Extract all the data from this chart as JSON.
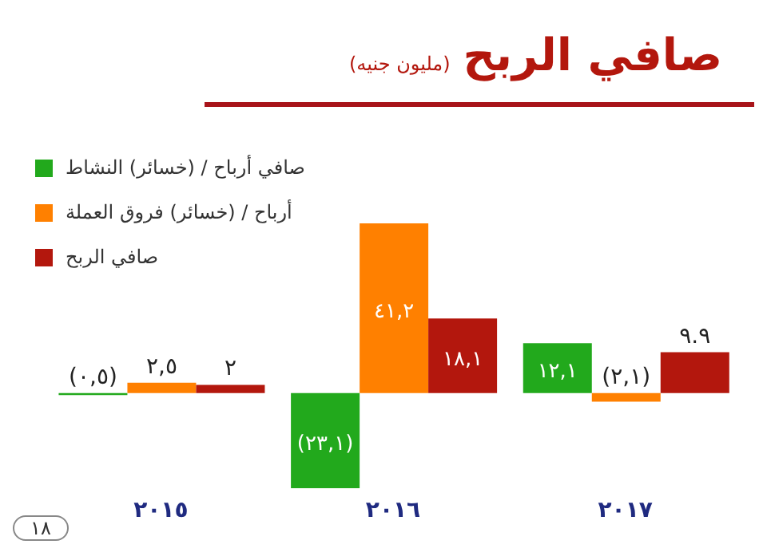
{
  "chart_data": {
    "type": "bar",
    "title": "صافي الربح",
    "subtitle": "(مليون جنيه)",
    "categories": [
      "٢٠١٥",
      "٢٠١٦",
      "٢٠١٧"
    ],
    "series": [
      {
        "name": "صافي أرباح / (خسائر) النشاط",
        "color": "#22a91c",
        "values": [
          -0.5,
          -23.1,
          12.1
        ],
        "value_labels": [
          "(٠,٥)",
          "(٢٣,١)",
          "١٢,١"
        ]
      },
      {
        "name": "أرباح / (خسائر) فروق العملة",
        "color": "#ff8000",
        "values": [
          2.5,
          41.2,
          -2.1
        ],
        "value_labels": [
          "٢,٥",
          "٤١,٢",
          "(٢,١)"
        ]
      },
      {
        "name": "صافي الربح",
        "color": "#b3170d",
        "values": [
          2,
          18.1,
          9.9
        ],
        "value_labels": [
          "٢",
          "١٨,١",
          "٩.٩"
        ]
      }
    ],
    "legend": "top left",
    "grid": false,
    "annotations": [
      "١٨"
    ]
  }
}
